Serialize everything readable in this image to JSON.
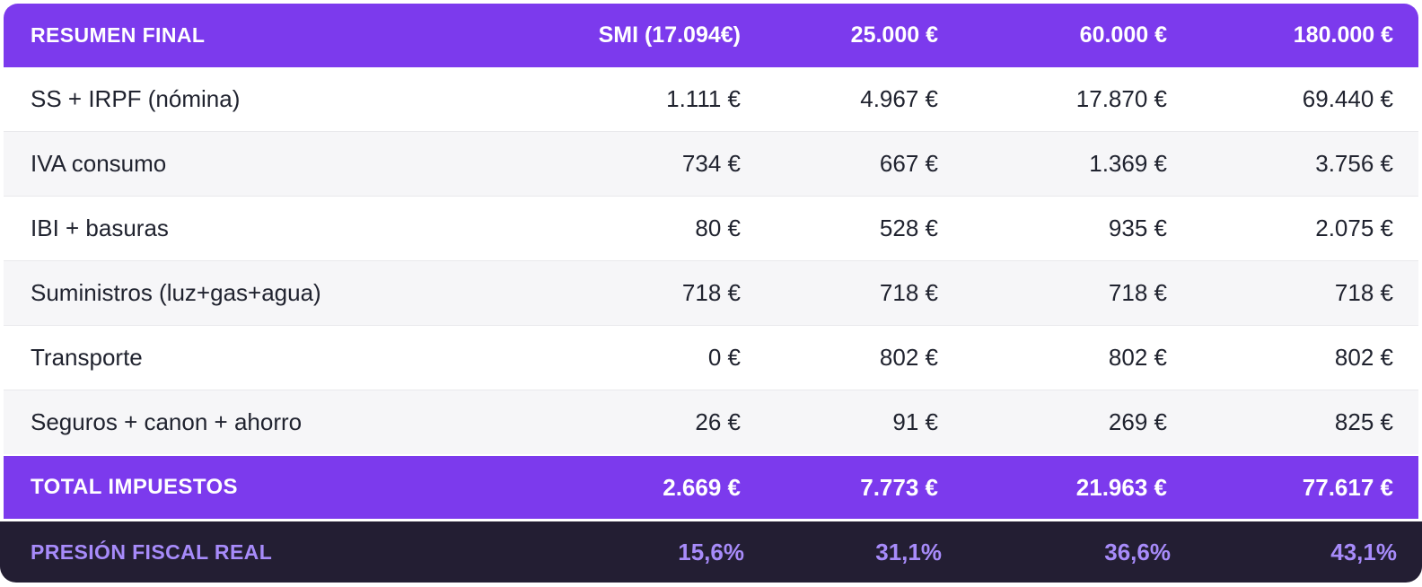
{
  "colors": {
    "accent_purple": "#7C3AED",
    "footer_dark": "#231E33",
    "footer_text_purple": "#A78BFA",
    "row_alt_bg": "#F6F6F8",
    "divider": "#E9E9EC",
    "body_text": "#20232F"
  },
  "chart_data": {
    "type": "table",
    "title": "RESUMEN FINAL",
    "header": {
      "title": "RESUMEN FINAL",
      "income_columns": [
        "SMI (17.094€)",
        "25.000 €",
        "60.000 €",
        "180.000 €"
      ]
    },
    "rows": [
      {
        "label": "SS + IRPF (nómina)",
        "values": [
          "1.111 €",
          "4.967 €",
          "17.870 €",
          "69.440 €"
        ]
      },
      {
        "label": "IVA consumo",
        "values": [
          "734 €",
          "667 €",
          "1.369 €",
          "3.756 €"
        ]
      },
      {
        "label": "IBI + basuras",
        "values": [
          "80 €",
          "528 €",
          "935 €",
          "2.075 €"
        ]
      },
      {
        "label": "Suministros (luz+gas+agua)",
        "values": [
          "718 €",
          "718 €",
          "718 €",
          "718 €"
        ]
      },
      {
        "label": "Transporte",
        "values": [
          "0 €",
          "802 €",
          "802 €",
          "802 €"
        ]
      },
      {
        "label": "Seguros + canon + ahorro",
        "values": [
          "26 €",
          "91 €",
          "269 €",
          "825 €"
        ]
      }
    ],
    "total": {
      "label": "TOTAL IMPUESTOS",
      "values": [
        "2.669 €",
        "7.773 €",
        "21.963 €",
        "77.617 €"
      ]
    },
    "pressure": {
      "label": "PRESIÓN FISCAL REAL",
      "values": [
        "15,6%",
        "31,1%",
        "36,6%",
        "43,1%"
      ]
    }
  }
}
